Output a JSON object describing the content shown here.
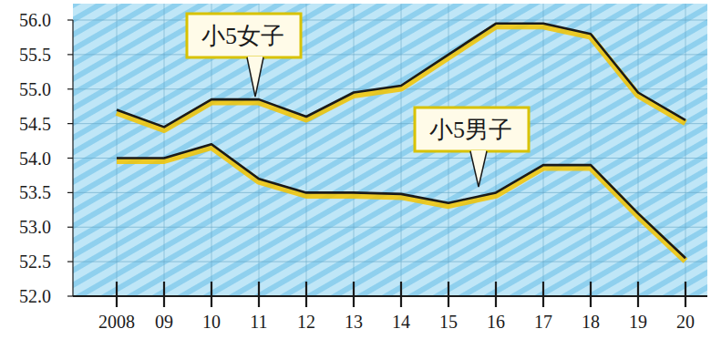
{
  "chart_data": {
    "type": "line",
    "categories": [
      "2008",
      "09",
      "10",
      "11",
      "12",
      "13",
      "14",
      "15",
      "16",
      "17",
      "18",
      "19",
      "20"
    ],
    "series": [
      {
        "name": "小5女子",
        "color": "#1a1a1a",
        "values": [
          54.7,
          54.45,
          54.85,
          54.85,
          54.6,
          54.95,
          55.05,
          55.5,
          55.95,
          55.95,
          55.8,
          54.95,
          54.55
        ]
      },
      {
        "name": "小5男子",
        "color": "#1a1a1a",
        "values": [
          54.0,
          54.0,
          54.2,
          53.7,
          53.5,
          53.5,
          53.48,
          53.35,
          53.5,
          53.9,
          53.9,
          53.2,
          52.55
        ]
      }
    ],
    "ylim": [
      52,
      56
    ],
    "yticks": [
      {
        "value": 52,
        "label": "52.0"
      },
      52.5,
      {
        "value": 53,
        "label": "53.0"
      },
      53.5,
      {
        "value": 54,
        "label": "54.0"
      },
      54.5,
      {
        "value": 55,
        "label": "55.0"
      },
      55.5,
      {
        "value": 56,
        "label": "56.0"
      }
    ],
    "grid": true
  }
}
